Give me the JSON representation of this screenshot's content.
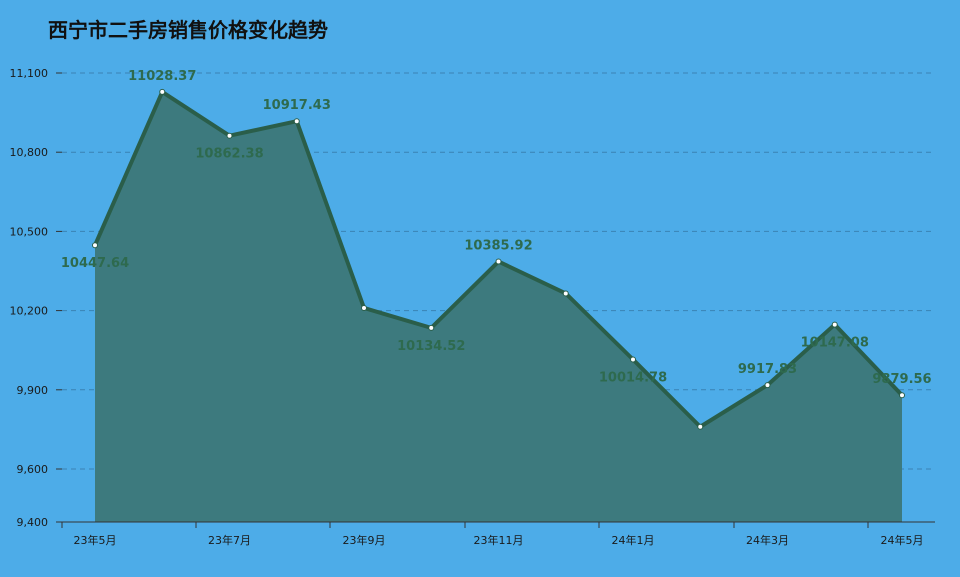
{
  "title": "西宁市二手房销售价格变化趋势",
  "colors": {
    "background": "#4dace8",
    "area_fill": "#3d7a7e",
    "line": "#2a5e4a",
    "grid": "#3a82b3",
    "data_label": "#2e6a4e",
    "point_fill": "#ffffff"
  },
  "chart_data": {
    "type": "area",
    "title": "西宁市二手房销售价格变化趋势",
    "xlabel": "",
    "ylabel": "",
    "ylim": [
      9400,
      11100
    ],
    "y_ticks": [
      9400,
      9600,
      9900,
      10200,
      10500,
      10800,
      11100
    ],
    "y_tick_labels": [
      "9,400",
      "9,600",
      "9,900",
      "10,200",
      "10,500",
      "10,800",
      "11,100"
    ],
    "x": [
      "23年5月",
      "23年6月",
      "23年7月",
      "23年8月",
      "23年9月",
      "23年10月",
      "23年11月",
      "23年12月",
      "24年1月",
      "24年2月",
      "24年3月",
      "24年4月",
      "24年5月"
    ],
    "x_tick_labels": [
      "23年5月",
      "",
      "23年7月",
      "",
      "23年9月",
      "",
      "23年11月",
      "",
      "24年1月",
      "",
      "24年3月",
      "",
      "24年5月"
    ],
    "series": [
      {
        "values": [
          10447.64,
          11028.37,
          10862.38,
          10917.43,
          10210,
          10134.52,
          10385.92,
          10265,
          10014.78,
          9760,
          9917.83,
          10147.08,
          9879.56
        ],
        "labels": [
          "10447.64",
          "11028.37",
          "10862.38",
          "10917.43",
          "",
          "10134.52",
          "10385.92",
          "",
          "10014.78",
          "",
          "9917.83",
          "10147.08",
          "9879.56"
        ],
        "label_positions": [
          "below",
          "above",
          "below",
          "above",
          "",
          "below",
          "above",
          "",
          "below",
          "",
          "above",
          "below",
          "above"
        ]
      }
    ],
    "grid": true,
    "legend": "none"
  }
}
